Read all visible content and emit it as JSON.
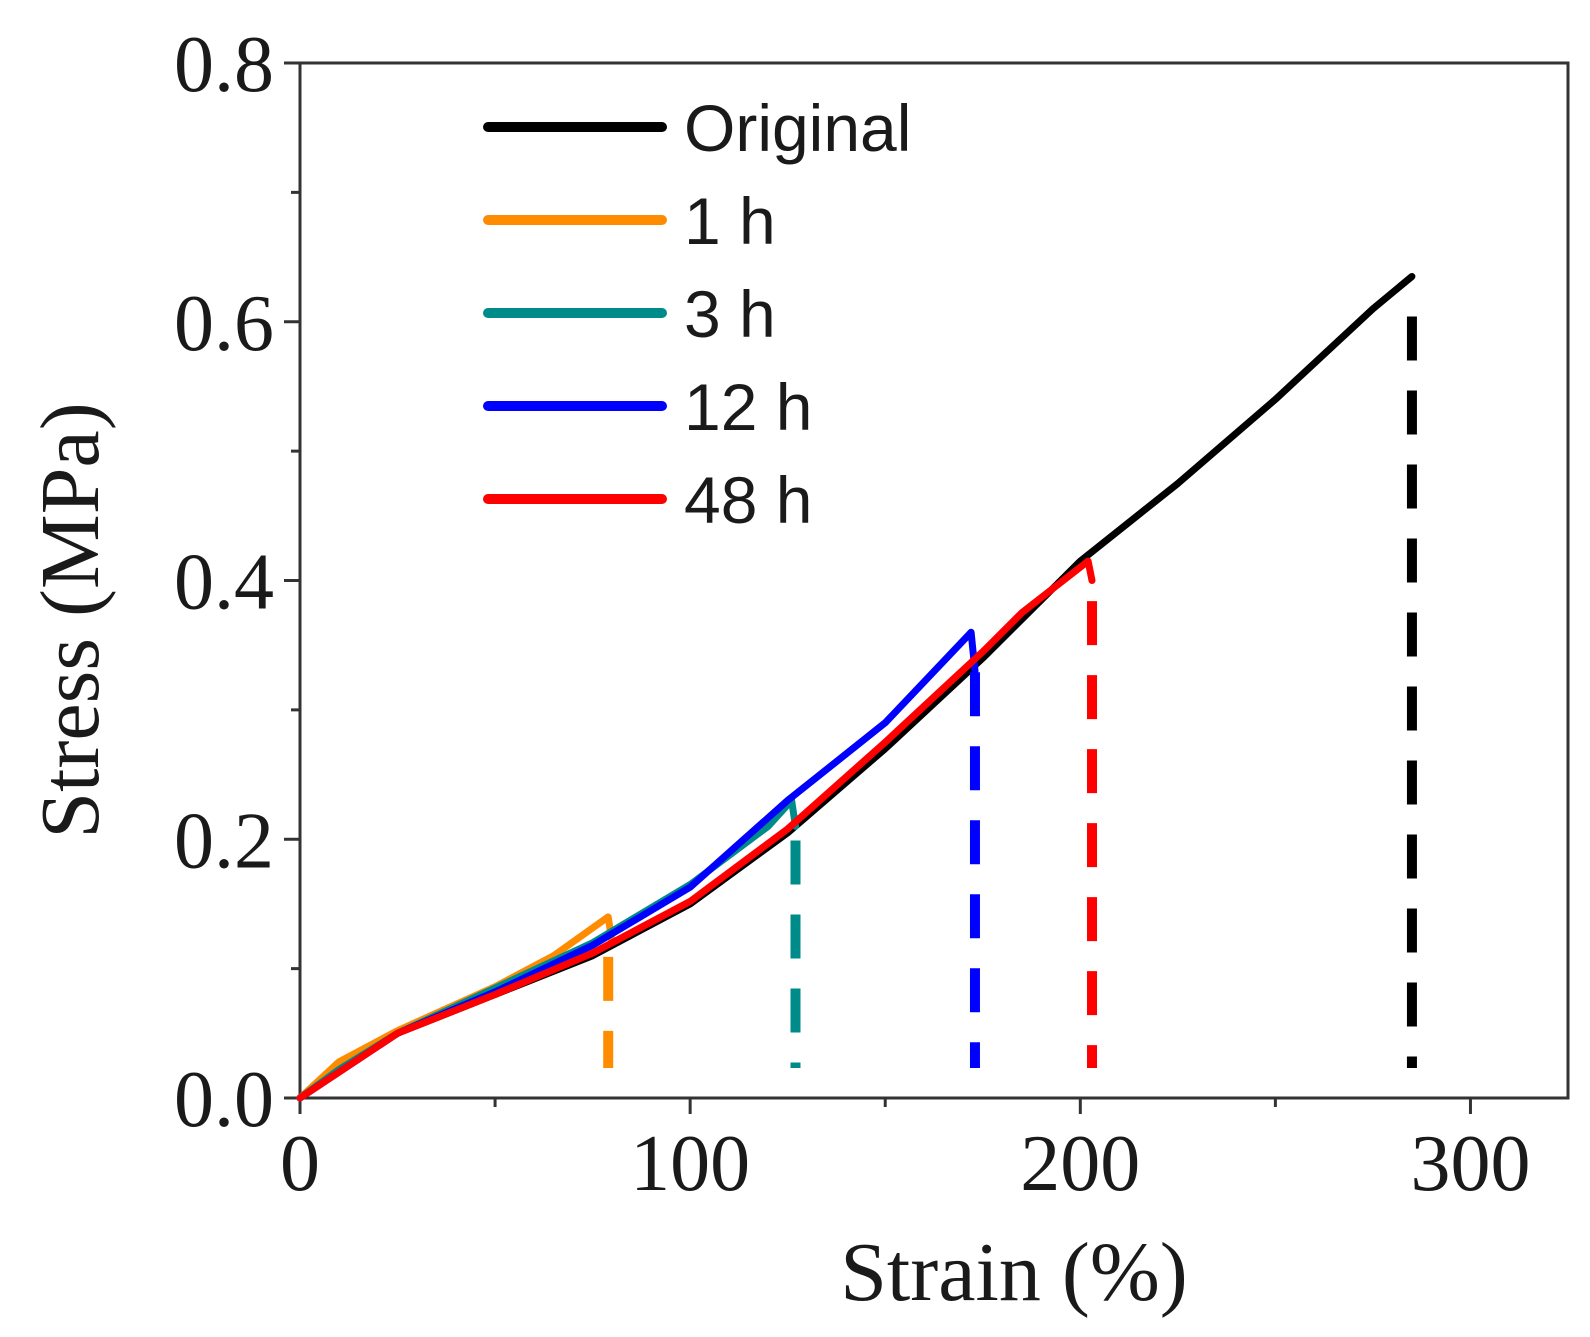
{
  "chart_data": {
    "type": "line",
    "title": "",
    "xlabel": "Strain (%)",
    "ylabel": "Stress (MPa)",
    "xlim": [
      0,
      325
    ],
    "ylim": [
      0,
      0.8
    ],
    "xticks": [
      {
        "value": 0,
        "label": "0"
      },
      {
        "value": 100,
        "label": "100"
      },
      {
        "value": 200,
        "label": "200"
      },
      {
        "value": 300,
        "label": "300"
      }
    ],
    "yticks": [
      {
        "value": 0.0,
        "label": "0.0"
      },
      {
        "value": 0.2,
        "label": "0.2"
      },
      {
        "value": 0.4,
        "label": "0.4"
      },
      {
        "value": 0.6,
        "label": "0.6"
      },
      {
        "value": 0.8,
        "label": "0.8"
      }
    ],
    "legend_position": "top-left",
    "series": [
      {
        "name": "Original",
        "color": "#000000",
        "points": [
          [
            0,
            0
          ],
          [
            10,
            0.025
          ],
          [
            25,
            0.05
          ],
          [
            50,
            0.08
          ],
          [
            75,
            0.11
          ],
          [
            100,
            0.15
          ],
          [
            125,
            0.205
          ],
          [
            150,
            0.27
          ],
          [
            175,
            0.34
          ],
          [
            200,
            0.415
          ],
          [
            225,
            0.475
          ],
          [
            250,
            0.54
          ],
          [
            275,
            0.61
          ],
          [
            285,
            0.635
          ]
        ],
        "break_strain": 285
      },
      {
        "name": "1 h",
        "color": "#ff8c00",
        "points": [
          [
            0,
            0
          ],
          [
            10,
            0.028
          ],
          [
            25,
            0.052
          ],
          [
            50,
            0.086
          ],
          [
            65,
            0.11
          ],
          [
            79,
            0.14
          ],
          [
            80,
            0.12
          ]
        ],
        "break_strain": 79
      },
      {
        "name": "3 h",
        "color": "#008b8b",
        "points": [
          [
            0,
            0
          ],
          [
            10,
            0.022
          ],
          [
            25,
            0.05
          ],
          [
            50,
            0.085
          ],
          [
            75,
            0.12
          ],
          [
            100,
            0.165
          ],
          [
            120,
            0.21
          ],
          [
            126,
            0.23
          ],
          [
            127,
            0.21
          ]
        ],
        "break_strain": 127
      },
      {
        "name": "12 h",
        "color": "#0000ff",
        "points": [
          [
            0,
            0
          ],
          [
            25,
            0.05
          ],
          [
            50,
            0.082
          ],
          [
            75,
            0.118
          ],
          [
            100,
            0.163
          ],
          [
            125,
            0.23
          ],
          [
            150,
            0.29
          ],
          [
            172,
            0.36
          ],
          [
            173,
            0.33
          ]
        ],
        "break_strain": 173
      },
      {
        "name": "48 h",
        "color": "#ff0000",
        "points": [
          [
            0,
            0
          ],
          [
            25,
            0.05
          ],
          [
            50,
            0.08
          ],
          [
            75,
            0.112
          ],
          [
            100,
            0.152
          ],
          [
            125,
            0.208
          ],
          [
            150,
            0.275
          ],
          [
            175,
            0.345
          ],
          [
            185,
            0.375
          ],
          [
            202,
            0.415
          ],
          [
            203,
            0.4
          ]
        ],
        "break_strain": 203
      }
    ]
  }
}
